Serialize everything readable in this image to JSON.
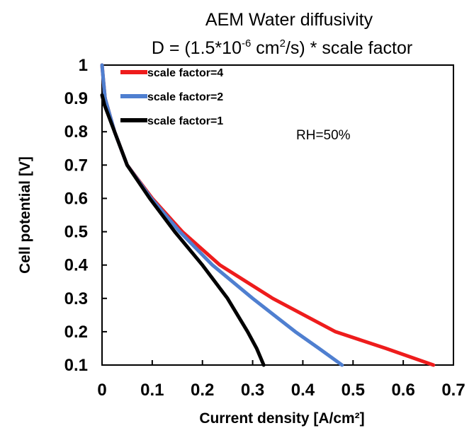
{
  "chart_data": {
    "type": "line",
    "title_line1": "AEM Water diffusivity",
    "title_line2": {
      "prefix": "D = (1.5*10",
      "exp": "-6",
      "unit_base": " cm",
      "unit_exp": "2",
      "suffix": "/s) * scale factor"
    },
    "xlabel": "Current density [A/cm²]",
    "ylabel": "Cell potential [V]",
    "xlim": [
      0,
      0.7
    ],
    "ylim": [
      0.1,
      1.0
    ],
    "xticks": [
      "0",
      "0.1",
      "0.2",
      "0.3",
      "0.4",
      "0.5",
      "0.6",
      "0.7"
    ],
    "yticks": [
      "0.1",
      "0.2",
      "0.3",
      "0.4",
      "0.5",
      "0.6",
      "0.7",
      "0.8",
      "0.9",
      "1"
    ],
    "grid": false,
    "legend_position": "top-left",
    "annotation": "RH=50%",
    "series": [
      {
        "name": "scale factor=4",
        "color": "#ee1c1c",
        "points": [
          [
            0.0,
            1.0
          ],
          [
            0.003,
            0.95
          ],
          [
            0.006,
            0.9
          ],
          [
            0.025,
            0.8
          ],
          [
            0.05,
            0.7
          ],
          [
            0.1,
            0.6
          ],
          [
            0.16,
            0.5
          ],
          [
            0.235,
            0.4
          ],
          [
            0.34,
            0.3
          ],
          [
            0.465,
            0.2
          ],
          [
            0.565,
            0.15
          ],
          [
            0.66,
            0.1
          ]
        ]
      },
      {
        "name": "scale factor=2",
        "color": "#4f7fd0",
        "points": [
          [
            0.0,
            1.0
          ],
          [
            0.003,
            0.95
          ],
          [
            0.006,
            0.9
          ],
          [
            0.025,
            0.8
          ],
          [
            0.05,
            0.7
          ],
          [
            0.098,
            0.6
          ],
          [
            0.155,
            0.5
          ],
          [
            0.22,
            0.4
          ],
          [
            0.3,
            0.3
          ],
          [
            0.385,
            0.2
          ],
          [
            0.432,
            0.15
          ],
          [
            0.478,
            0.1
          ]
        ]
      },
      {
        "name": "scale factor=1",
        "color": "#000000",
        "points": [
          [
            0.0,
            0.91
          ],
          [
            0.005,
            0.88
          ],
          [
            0.025,
            0.8
          ],
          [
            0.05,
            0.7
          ],
          [
            0.095,
            0.6
          ],
          [
            0.145,
            0.5
          ],
          [
            0.2,
            0.4
          ],
          [
            0.25,
            0.3
          ],
          [
            0.29,
            0.2
          ],
          [
            0.308,
            0.15
          ],
          [
            0.322,
            0.1
          ]
        ]
      }
    ]
  }
}
